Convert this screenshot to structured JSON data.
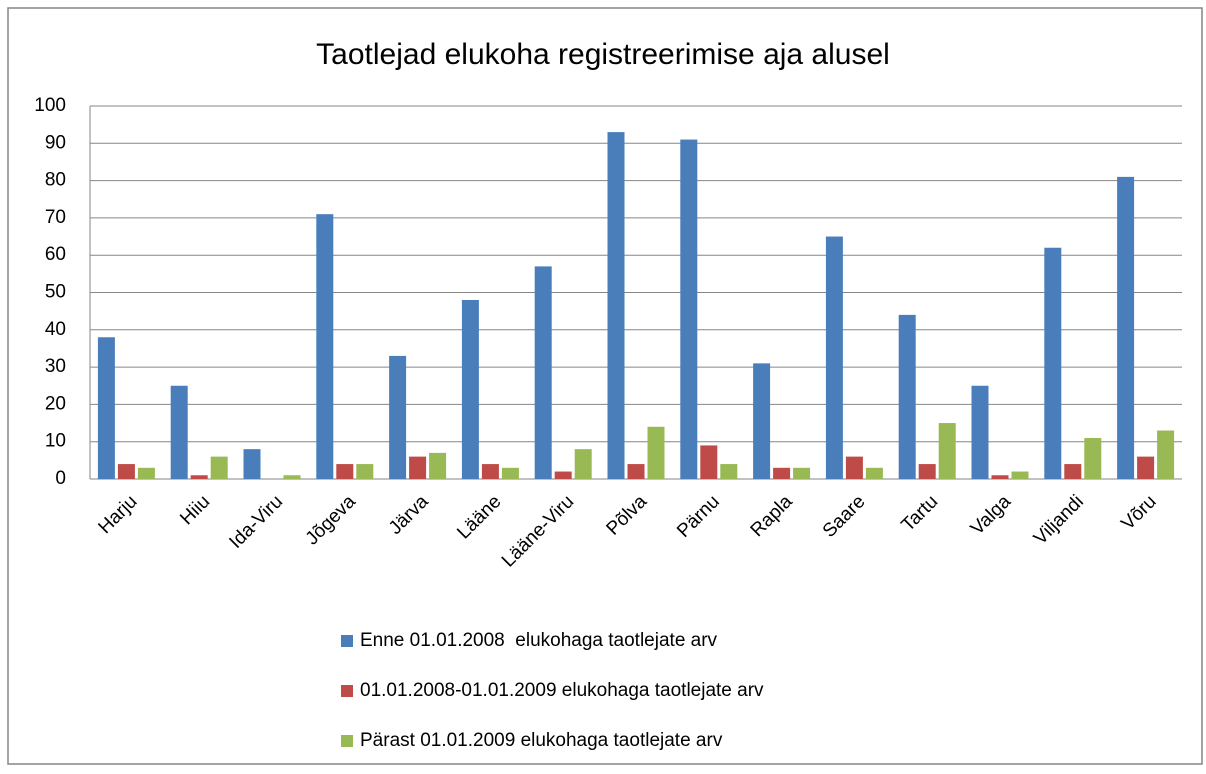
{
  "chart_data": {
    "type": "bar",
    "title": "Taotlejad elukoha registreerimise aja alusel",
    "categories": [
      "Harju",
      "Hiiu",
      "Ida-Viru",
      "Jõgeva",
      "Järva",
      "Lääne",
      "Lääne-Viru",
      "Põlva",
      "Pärnu",
      "Rapla",
      "Saare",
      "Tartu",
      "Valga",
      "Viljandi",
      "Võru"
    ],
    "series": [
      {
        "name": "Enne 01.01.2008  elukohaga taotlejate arv",
        "color": "#4a7ebb",
        "values": [
          38,
          25,
          8,
          71,
          33,
          48,
          57,
          93,
          91,
          31,
          65,
          44,
          25,
          62,
          81
        ]
      },
      {
        "name": "01.01.2008-01.01.2009 elukohaga taotlejate arv",
        "color": "#be4b48",
        "values": [
          4,
          1,
          0,
          4,
          6,
          4,
          2,
          4,
          9,
          3,
          6,
          4,
          1,
          4,
          6
        ]
      },
      {
        "name": "Pärast 01.01.2009 elukohaga taotlejate arv",
        "color": "#98b954",
        "values": [
          3,
          6,
          1,
          4,
          7,
          3,
          8,
          14,
          4,
          3,
          3,
          15,
          2,
          11,
          13
        ]
      }
    ],
    "ylim": [
      0,
      100
    ],
    "yticks": [
      0,
      10,
      20,
      30,
      40,
      50,
      60,
      70,
      80,
      90,
      100
    ],
    "grid": true,
    "legend": "bottom"
  }
}
